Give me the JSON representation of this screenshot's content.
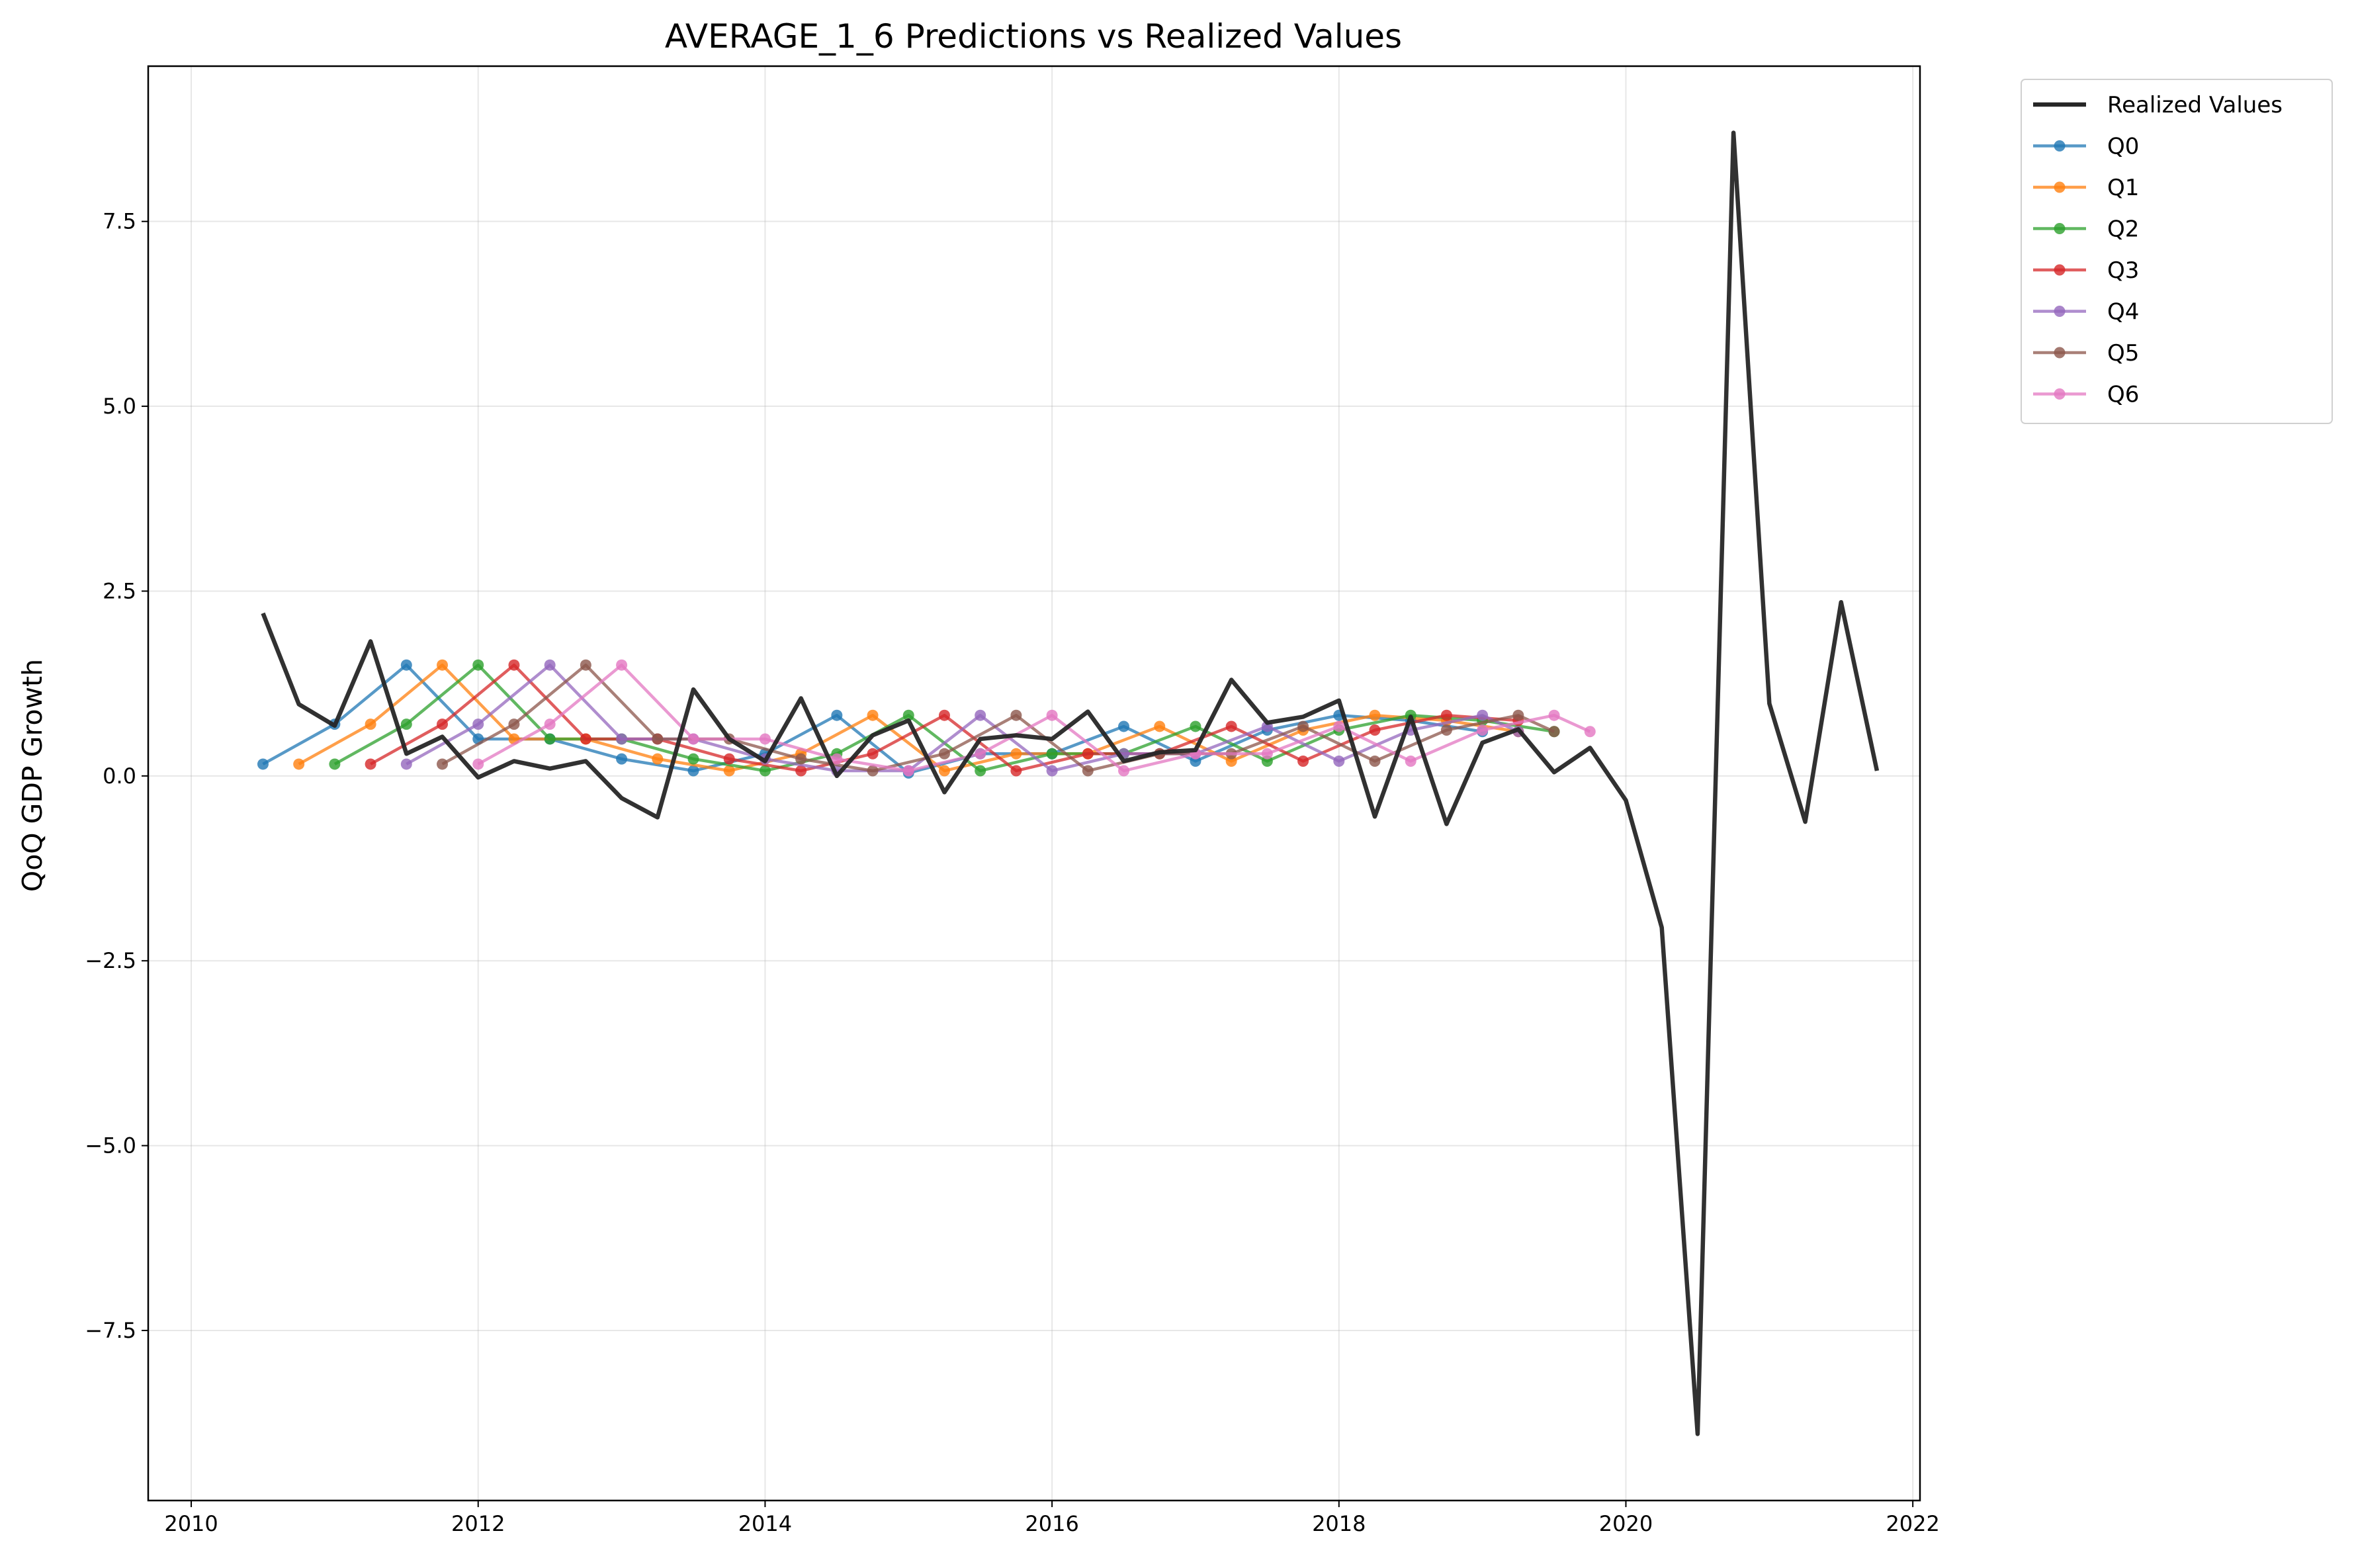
{
  "chart_data": {
    "type": "line",
    "title": "AVERAGE_1_6 Predictions vs Realized Values",
    "xlabel": "",
    "ylabel": "QoQ GDP Growth",
    "xlim": [
      2009.7,
      2022.05
    ],
    "ylim": [
      -9.8,
      9.6
    ],
    "xticks": [
      2010,
      2012,
      2014,
      2016,
      2018,
      2020,
      2022
    ],
    "yticks": [
      -7.5,
      -5.0,
      -2.5,
      0.0,
      2.5,
      5.0,
      7.5
    ],
    "grid": true,
    "legend_position": "outside-top-right",
    "colors": {
      "realized": "#262626",
      "Q0": "#1f77b4",
      "Q1": "#ff7f0e",
      "Q2": "#2ca02c",
      "Q3": "#d62728",
      "Q4": "#9467bd",
      "Q5": "#8c564b",
      "Q6": "#e377c2"
    },
    "realized": {
      "name": "Realized Values",
      "x": [
        "2010Q2",
        "2010Q3",
        "2010Q4",
        "2011Q1",
        "2011Q2",
        "2011Q3",
        "2011Q4",
        "2012Q1",
        "2012Q2",
        "2012Q3",
        "2012Q4",
        "2013Q1",
        "2013Q2",
        "2013Q3",
        "2013Q4",
        "2014Q1",
        "2014Q2",
        "2014Q3",
        "2014Q4",
        "2015Q1",
        "2015Q2",
        "2015Q3",
        "2015Q4",
        "2016Q1",
        "2016Q2",
        "2016Q3",
        "2016Q4",
        "2017Q1",
        "2017Q2",
        "2017Q3",
        "2017Q4",
        "2018Q1",
        "2018Q2",
        "2018Q3",
        "2018Q4",
        "2019Q1",
        "2019Q2",
        "2019Q3",
        "2019Q4",
        "2020Q1",
        "2020Q2",
        "2020Q3",
        "2020Q4",
        "2021Q1",
        "2021Q2",
        "2021Q3"
      ],
      "values": [
        2.2,
        0.97,
        0.68,
        1.82,
        0.3,
        0.53,
        -0.02,
        0.2,
        0.1,
        0.2,
        -0.3,
        -0.56,
        1.17,
        0.5,
        0.2,
        1.05,
        0.0,
        0.55,
        0.75,
        -0.22,
        0.5,
        0.55,
        0.5,
        0.87,
        0.2,
        0.32,
        0.35,
        1.3,
        0.72,
        0.8,
        1.02,
        -0.55,
        0.8,
        -0.65,
        0.45,
        0.63,
        0.05,
        0.38,
        -0.33,
        -2.05,
        -8.9,
        8.7,
        0.98,
        -0.62,
        2.35,
        0.07
      ]
    },
    "series": [
      {
        "name": "Q0",
        "x": [
          "2010Q2",
          "2010Q4",
          "2011Q2",
          "2011Q4",
          "2012Q2",
          "2012Q4",
          "2013Q2",
          "2013Q4",
          "2014Q2",
          "2014Q4",
          "2015Q2",
          "2015Q4",
          "2016Q2",
          "2016Q4",
          "2017Q2",
          "2017Q4",
          "2018Q2",
          "2018Q4"
        ],
        "values": [
          0.16,
          0.7,
          1.5,
          0.5,
          0.5,
          0.23,
          0.07,
          0.3,
          0.82,
          0.04,
          0.3,
          0.3,
          0.67,
          0.2,
          0.62,
          0.82,
          0.75,
          0.6
        ]
      },
      {
        "name": "Q1",
        "x": [
          "2010Q3",
          "2011Q1",
          "2011Q3",
          "2012Q1",
          "2012Q3",
          "2013Q1",
          "2013Q3",
          "2014Q1",
          "2014Q3",
          "2015Q1",
          "2015Q3",
          "2016Q1",
          "2016Q3",
          "2017Q1",
          "2017Q3",
          "2018Q1",
          "2018Q3",
          "2019Q1"
        ],
        "values": [
          0.16,
          0.7,
          1.5,
          0.5,
          0.5,
          0.23,
          0.07,
          0.3,
          0.82,
          0.07,
          0.3,
          0.3,
          0.67,
          0.2,
          0.62,
          0.82,
          0.75,
          0.6
        ]
      },
      {
        "name": "Q2",
        "x": [
          "2010Q4",
          "2011Q2",
          "2011Q4",
          "2012Q2",
          "2012Q4",
          "2013Q2",
          "2013Q4",
          "2014Q2",
          "2014Q4",
          "2015Q2",
          "2015Q4",
          "2016Q2",
          "2016Q4",
          "2017Q2",
          "2017Q4",
          "2018Q2",
          "2018Q4",
          "2019Q2"
        ],
        "values": [
          0.16,
          0.7,
          1.5,
          0.5,
          0.5,
          0.23,
          0.07,
          0.3,
          0.82,
          0.07,
          0.3,
          0.3,
          0.67,
          0.2,
          0.62,
          0.82,
          0.75,
          0.6
        ]
      },
      {
        "name": "Q3",
        "x": [
          "2011Q1",
          "2011Q3",
          "2012Q1",
          "2012Q3",
          "2013Q1",
          "2013Q3",
          "2014Q1",
          "2014Q3",
          "2015Q1",
          "2015Q3",
          "2016Q1",
          "2016Q3",
          "2017Q1",
          "2017Q3",
          "2018Q1",
          "2018Q3",
          "2019Q1"
        ],
        "values": [
          0.16,
          0.7,
          1.5,
          0.5,
          0.5,
          0.23,
          0.07,
          0.3,
          0.82,
          0.07,
          0.3,
          0.3,
          0.67,
          0.2,
          0.62,
          0.82,
          0.75
        ]
      },
      {
        "name": "Q4",
        "x": [
          "2011Q2",
          "2011Q4",
          "2012Q2",
          "2012Q4",
          "2013Q2",
          "2013Q4",
          "2014Q2",
          "2014Q4",
          "2015Q2",
          "2015Q4",
          "2016Q2",
          "2016Q4",
          "2017Q2",
          "2017Q4",
          "2018Q2",
          "2018Q4",
          "2019Q1"
        ],
        "values": [
          0.16,
          0.7,
          1.5,
          0.5,
          0.5,
          0.23,
          0.07,
          0.07,
          0.82,
          0.07,
          0.3,
          0.3,
          0.67,
          0.2,
          0.62,
          0.82,
          0.6
        ]
      },
      {
        "name": "Q5",
        "x": [
          "2011Q3",
          "2012Q1",
          "2012Q3",
          "2013Q1",
          "2013Q3",
          "2014Q1",
          "2014Q3",
          "2015Q1",
          "2015Q3",
          "2016Q1",
          "2016Q3",
          "2017Q1",
          "2017Q3",
          "2018Q1",
          "2018Q3",
          "2019Q1",
          "2019Q2"
        ],
        "values": [
          0.16,
          0.7,
          1.5,
          0.5,
          0.5,
          0.23,
          0.07,
          0.3,
          0.82,
          0.07,
          0.3,
          0.3,
          0.67,
          0.2,
          0.62,
          0.82,
          0.6
        ]
      },
      {
        "name": "Q6",
        "x": [
          "2011Q4",
          "2012Q2",
          "2012Q4",
          "2013Q2",
          "2013Q4",
          "2014Q2",
          "2014Q4",
          "2015Q2",
          "2015Q4",
          "2016Q2",
          "2016Q4",
          "2017Q2",
          "2017Q4",
          "2018Q2",
          "2018Q4",
          "2019Q2",
          "2019Q3"
        ],
        "values": [
          0.16,
          0.7,
          1.5,
          0.5,
          0.5,
          0.23,
          0.07,
          0.3,
          0.82,
          0.07,
          0.3,
          0.3,
          0.67,
          0.2,
          0.62,
          0.82,
          0.6
        ]
      }
    ]
  }
}
